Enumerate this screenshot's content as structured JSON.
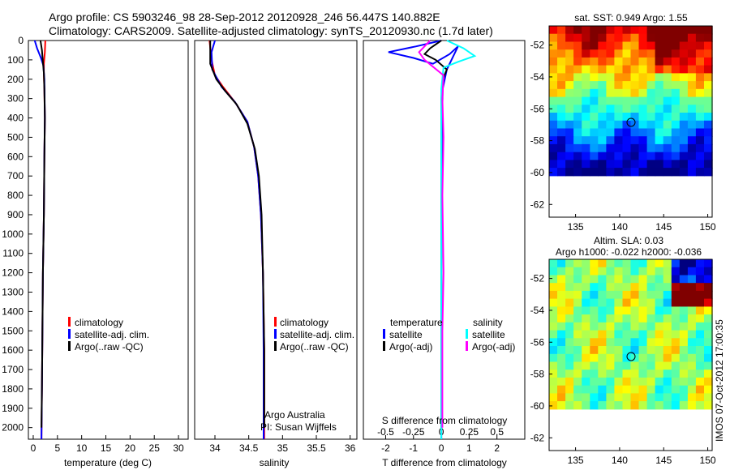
{
  "header": {
    "line1": "Argo profile: CS 5903246_98 28-Sep-2012 20120928_246 56.447S 140.882E",
    "line2": "Climatology: CARS2009. Satellite-adjusted climatology: synTS_20120930.nc (1.7d later)"
  },
  "colors": {
    "climatology": "#ff0000",
    "satellite_adj": "#0000ff",
    "argo": "#000000",
    "salinity_satellite": "#00ffff",
    "salinity_argo": "#ff00ff"
  },
  "depth_axis": {
    "ticks": [
      0,
      100,
      200,
      300,
      400,
      500,
      600,
      700,
      800,
      900,
      1000,
      1100,
      1200,
      1300,
      1400,
      1500,
      1600,
      1700,
      1800,
      1900,
      2000
    ],
    "range": [
      0,
      2060
    ]
  },
  "chart_data": [
    {
      "type": "line",
      "xlabel": "temperature (deg C)",
      "xlim": [
        -1,
        32
      ],
      "xticks": [
        0,
        5,
        10,
        15,
        20,
        25,
        30
      ],
      "ylim": [
        0,
        2060
      ],
      "y_reversed": true,
      "legend": [
        "climatology",
        "satellite-adj. clim.",
        "Argo(..raw -QC)"
      ],
      "series": [
        {
          "name": "climatology",
          "color": "#ff0000",
          "points": [
            [
              2.5,
              0
            ],
            [
              2.4,
              60
            ],
            [
              2.2,
              120
            ],
            [
              2.2,
              180
            ],
            [
              2.3,
              250
            ],
            [
              2.4,
              400
            ],
            [
              2.3,
              600
            ],
            [
              2.2,
              900
            ],
            [
              2.0,
              1200
            ],
            [
              1.9,
              1500
            ],
            [
              1.8,
              1800
            ],
            [
              1.7,
              2060
            ]
          ]
        },
        {
          "name": "satellite-adj. clim.",
          "color": "#0000ff",
          "points": [
            [
              0.3,
              0
            ],
            [
              0.8,
              40
            ],
            [
              1.6,
              90
            ],
            [
              2.1,
              130
            ],
            [
              2.3,
              200
            ],
            [
              2.4,
              400
            ],
            [
              2.3,
              600
            ],
            [
              2.2,
              900
            ],
            [
              2.0,
              1200
            ],
            [
              1.9,
              1500
            ],
            [
              1.8,
              1800
            ],
            [
              1.7,
              2060
            ]
          ]
        },
        {
          "name": "Argo(..raw -QC)",
          "color": "#000000",
          "points": [
            [
              1.5,
              0
            ],
            [
              1.8,
              50
            ],
            [
              2.0,
              110
            ],
            [
              2.2,
              170
            ],
            [
              2.3,
              250
            ],
            [
              2.4,
              400
            ],
            [
              2.3,
              600
            ],
            [
              2.2,
              900
            ],
            [
              2.0,
              1200
            ],
            [
              1.9,
              1500
            ],
            [
              1.8,
              1800
            ],
            [
              1.7,
              2000
            ]
          ]
        }
      ]
    },
    {
      "type": "line",
      "xlabel": "salinity",
      "xlim": [
        33.7,
        36.1
      ],
      "xticks": [
        34,
        34.5,
        35,
        35.5,
        36
      ],
      "ylim": [
        0,
        2060
      ],
      "y_reversed": true,
      "legend": [
        "climatology",
        "satellite-adj. clim.",
        "Argo(..raw -QC)"
      ],
      "annotations": [
        "Argo Australia",
        "PI: Susan Wijffels"
      ],
      "series": [
        {
          "name": "climatology",
          "color": "#ff0000",
          "points": [
            [
              33.92,
              0
            ],
            [
              33.95,
              100
            ],
            [
              34.0,
              180
            ],
            [
              34.12,
              240
            ],
            [
              34.3,
              320
            ],
            [
              34.48,
              420
            ],
            [
              34.58,
              550
            ],
            [
              34.64,
              700
            ],
            [
              34.68,
              900
            ],
            [
              34.71,
              1200
            ],
            [
              34.73,
              1600
            ],
            [
              34.73,
              2060
            ]
          ]
        },
        {
          "name": "satellite-adj. clim.",
          "color": "#0000ff",
          "points": [
            [
              34.0,
              0
            ],
            [
              33.95,
              60
            ],
            [
              33.96,
              150
            ],
            [
              34.1,
              240
            ],
            [
              34.3,
              320
            ],
            [
              34.48,
              420
            ],
            [
              34.58,
              550
            ],
            [
              34.64,
              700
            ],
            [
              34.68,
              900
            ],
            [
              34.71,
              1200
            ],
            [
              34.72,
              1600
            ],
            [
              34.72,
              2060
            ]
          ]
        },
        {
          "name": "Argo(..raw -QC)",
          "color": "#000000",
          "points": [
            [
              33.93,
              0
            ],
            [
              33.93,
              120
            ],
            [
              34.02,
              200
            ],
            [
              34.15,
              260
            ],
            [
              34.32,
              330
            ],
            [
              34.48,
              430
            ],
            [
              34.59,
              560
            ],
            [
              34.65,
              700
            ],
            [
              34.69,
              900
            ],
            [
              34.71,
              1200
            ],
            [
              34.73,
              1600
            ],
            [
              34.73,
              2000
            ]
          ]
        }
      ]
    },
    {
      "type": "line",
      "xlabel": "T difference from climatology",
      "title": "S difference from climatology",
      "xlim": [
        -2.8,
        3.0
      ],
      "xticks": [
        -2,
        -1,
        0,
        1,
        2
      ],
      "s_xlim": [
        -0.7,
        0.75
      ],
      "s_xticks": [
        -0.5,
        -0.25,
        0,
        0.25,
        0.5
      ],
      "s_xtick_labels": [
        "-0.5",
        "-0.25",
        "0",
        "0.25",
        "0.5"
      ],
      "ylim": [
        0,
        2060
      ],
      "y_reversed": true,
      "legend": {
        "temperature_header": "temperature",
        "salinity_header": "salinity",
        "entries": [
          {
            "label": "satellite",
            "group": "temperature"
          },
          {
            "label": "Argo(-adj)",
            "group": "temperature"
          },
          {
            "label": "satellite",
            "group": "salinity"
          },
          {
            "label": "Argo(-adj)",
            "group": "salinity"
          }
        ]
      },
      "series": [
        {
          "name": "satellite",
          "group": "temperature",
          "color": "#0000ff",
          "points": [
            [
              0,
              0
            ],
            [
              -0.9,
              30
            ],
            [
              -1.9,
              60
            ],
            [
              -1.0,
              90
            ],
            [
              -0.3,
              120
            ],
            [
              0.3,
              70
            ],
            [
              0.6,
              30
            ],
            [
              0.2,
              150
            ],
            [
              0.05,
              250
            ],
            [
              0.02,
              500
            ],
            [
              0,
              1000
            ],
            [
              0,
              2060
            ]
          ]
        },
        {
          "name": "Argo(-adj)",
          "group": "temperature",
          "color": "#000000",
          "points": [
            [
              0,
              0
            ],
            [
              -0.4,
              40
            ],
            [
              -0.6,
              70
            ],
            [
              -0.2,
              100
            ],
            [
              0.2,
              150
            ],
            [
              0.05,
              200
            ],
            [
              0,
              300
            ],
            [
              0,
              600
            ],
            [
              0,
              1000
            ],
            [
              0,
              1500
            ],
            [
              0,
              2000
            ]
          ]
        },
        {
          "name": "satellite",
          "group": "salinity",
          "color": "#00ffff",
          "points": [
            [
              0.05,
              0
            ],
            [
              0.2,
              40
            ],
            [
              0.3,
              80
            ],
            [
              0.15,
              110
            ],
            [
              0.02,
              140
            ],
            [
              0,
              250
            ],
            [
              0,
              500
            ],
            [
              0,
              1000
            ],
            [
              0,
              1500
            ],
            [
              0,
              2060
            ]
          ]
        },
        {
          "name": "Argo(-adj)",
          "group": "salinity",
          "color": "#ff00ff",
          "points": [
            [
              -0.1,
              0
            ],
            [
              -0.2,
              60
            ],
            [
              -0.15,
              100
            ],
            [
              0.02,
              180
            ],
            [
              0.01,
              300
            ],
            [
              0.02,
              500
            ],
            [
              0.01,
              800
            ],
            [
              0.02,
              1200
            ],
            [
              0.01,
              1500
            ],
            [
              0.01,
              1800
            ],
            [
              0.01,
              2000
            ]
          ]
        }
      ]
    },
    {
      "type": "heatmap",
      "title": "sat. SST: 0.949 Argo: 1.55",
      "xlim": [
        132,
        150.5
      ],
      "ylim": [
        -62.8,
        -50.8
      ],
      "xticks": [
        135,
        140,
        145,
        150
      ],
      "yticks": [
        -52,
        -54,
        -56,
        -58,
        -60,
        -62
      ],
      "ytick_labels": [
        "-52",
        "-54",
        "-56",
        "-58",
        "-60",
        "-62"
      ],
      "data_rows_lat": [
        -50.8,
        -60.2
      ],
      "marker": {
        "lon": 140.882,
        "lat": -56.447
      }
    },
    {
      "type": "heatmap",
      "title": "Altim. SLA: 0.03",
      "subtitle": "Argo h1000: -0.022 h2000: -0.036",
      "xlim": [
        132,
        150.5
      ],
      "ylim": [
        -62.8,
        -50.8
      ],
      "xticks": [
        135,
        140,
        145,
        150
      ],
      "yticks": [
        -52,
        -54,
        -56,
        -58,
        -60,
        -62
      ],
      "ytick_labels": [
        "-52",
        "-54",
        "-56",
        "-58",
        "-60",
        "-62"
      ],
      "data_rows_lat": [
        -50.8,
        -60.2
      ],
      "marker": {
        "lon": 140.882,
        "lat": -56.447
      }
    }
  ],
  "side_label": "IMOS 07-Oct-2012 17:00:35"
}
